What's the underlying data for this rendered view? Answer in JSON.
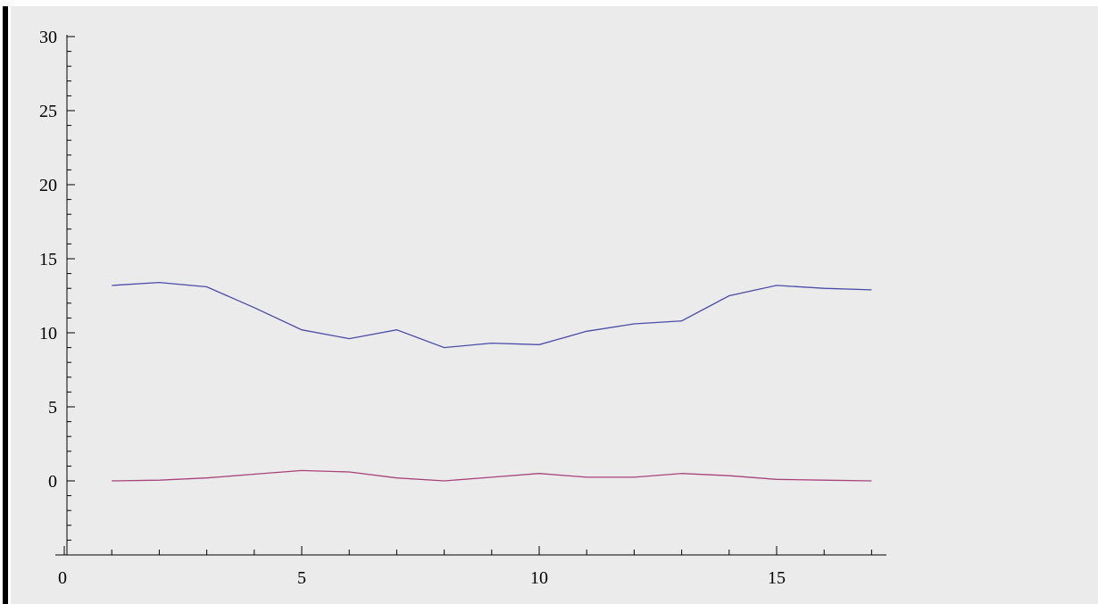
{
  "chart_data": {
    "type": "line",
    "title": "",
    "xlabel": "",
    "ylabel": "",
    "xlim": [
      0,
      17.5
    ],
    "ylim": [
      -5,
      30
    ],
    "x_ticks": [
      0,
      5,
      10,
      15
    ],
    "x_tick_labels": [
      "0",
      "5",
      "10",
      "15"
    ],
    "y_ticks": [
      0,
      5,
      10,
      15,
      20,
      25,
      30
    ],
    "y_tick_labels": [
      "0",
      "5",
      "10",
      "15",
      "20",
      "25",
      "30"
    ],
    "grid": false,
    "x": [
      1,
      2,
      3,
      4,
      5,
      6,
      7,
      8,
      9,
      10,
      11,
      12,
      13,
      14,
      15,
      16,
      17
    ],
    "series": [
      {
        "color": "#4b4baa",
        "values": [
          13.2,
          13.4,
          13.1,
          11.7,
          10.2,
          9.6,
          10.2,
          9.0,
          9.3,
          9.2,
          10.1,
          10.6,
          10.8,
          12.5,
          13.2,
          13.0,
          12.9
        ]
      },
      {
        "color": "#a8437a",
        "values": [
          0.0,
          0.05,
          0.2,
          0.45,
          0.7,
          0.6,
          0.2,
          0.0,
          0.25,
          0.5,
          0.25,
          0.25,
          0.5,
          0.35,
          0.1,
          0.05,
          0.0
        ]
      }
    ]
  }
}
